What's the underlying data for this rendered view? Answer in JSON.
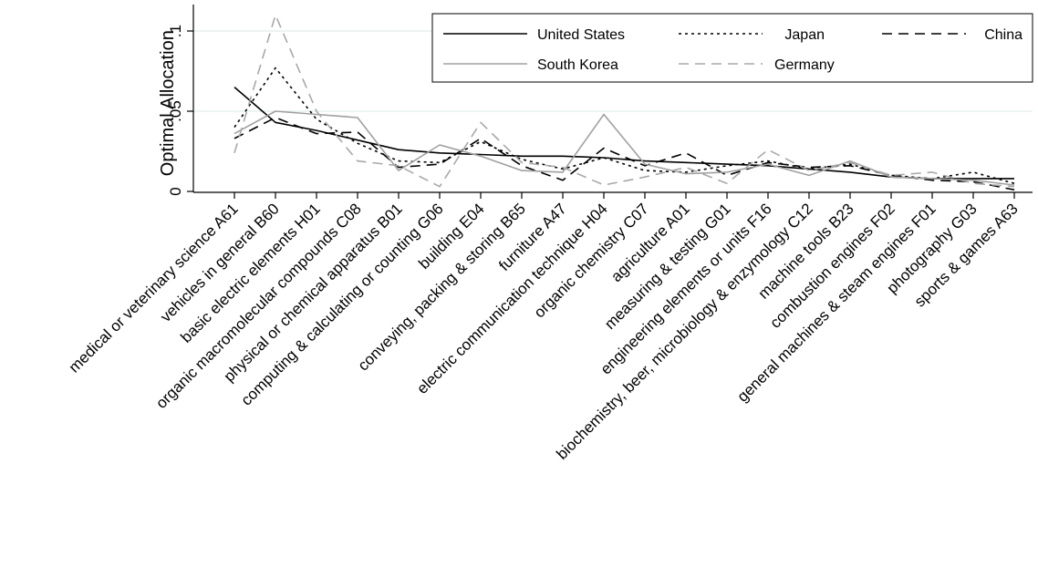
{
  "chart_data": {
    "type": "line",
    "ylabel": "Optimal Allocation",
    "xlabel": "",
    "ylim": [
      0,
      0.11
    ],
    "yticks": [
      0,
      0.05,
      0.1
    ],
    "ytick_labels": [
      "0",
      ".05",
      ".1"
    ],
    "grid": true,
    "legend_position": "top-right",
    "categories": [
      "medical or veterinary science A61",
      "vehicles in general B60",
      "basic electric elements H01",
      "organic macromolecular compounds C08",
      "physical or chemical apparatus B01",
      "computing & calculating or counting G06",
      "building E04",
      "conveying, packing & storing B65",
      "furniture A47",
      "electric communication technique H04",
      "organic chemistry C07",
      "agriculture A01",
      "measuring & testing G01",
      "engineering elements or units F16",
      "biochemistry, beer, microbiology & enzymology C12",
      "machine tools B23",
      "combustion engines F02",
      "general machines & steam engines F01",
      "photography G03",
      "sports & games A63"
    ],
    "series": [
      {
        "name": "United States",
        "style": "solid",
        "color": "#000000",
        "values": [
          0.065,
          0.043,
          0.038,
          0.032,
          0.026,
          0.024,
          0.023,
          0.022,
          0.022,
          0.021,
          0.019,
          0.018,
          0.017,
          0.016,
          0.014,
          0.012,
          0.009,
          0.008,
          0.008,
          0.008
        ]
      },
      {
        "name": "Japan",
        "style": "dotted",
        "color": "#000000",
        "values": [
          0.04,
          0.077,
          0.045,
          0.03,
          0.019,
          0.018,
          0.031,
          0.02,
          0.014,
          0.021,
          0.013,
          0.012,
          0.016,
          0.019,
          0.014,
          0.017,
          0.01,
          0.008,
          0.012,
          0.005
        ]
      },
      {
        "name": "China",
        "style": "dashed",
        "color": "#000000",
        "values": [
          0.033,
          0.046,
          0.036,
          0.037,
          0.015,
          0.017,
          0.033,
          0.016,
          0.007,
          0.027,
          0.016,
          0.024,
          0.01,
          0.018,
          0.015,
          0.016,
          0.01,
          0.007,
          0.006,
          0.001
        ]
      },
      {
        "name": "South Korea",
        "style": "solid",
        "color": "#a0a0a0",
        "values": [
          0.036,
          0.05,
          0.048,
          0.046,
          0.013,
          0.029,
          0.022,
          0.013,
          0.012,
          0.048,
          0.017,
          0.011,
          0.012,
          0.017,
          0.01,
          0.019,
          0.009,
          0.008,
          0.007,
          0.004
        ]
      },
      {
        "name": "Germany",
        "style": "dashed",
        "color": "#a8a8a8",
        "values": [
          0.024,
          0.11,
          0.05,
          0.019,
          0.016,
          0.003,
          0.043,
          0.018,
          0.015,
          0.004,
          0.009,
          0.015,
          0.005,
          0.026,
          0.013,
          0.018,
          0.01,
          0.012,
          0.005,
          0.003
        ]
      }
    ]
  }
}
